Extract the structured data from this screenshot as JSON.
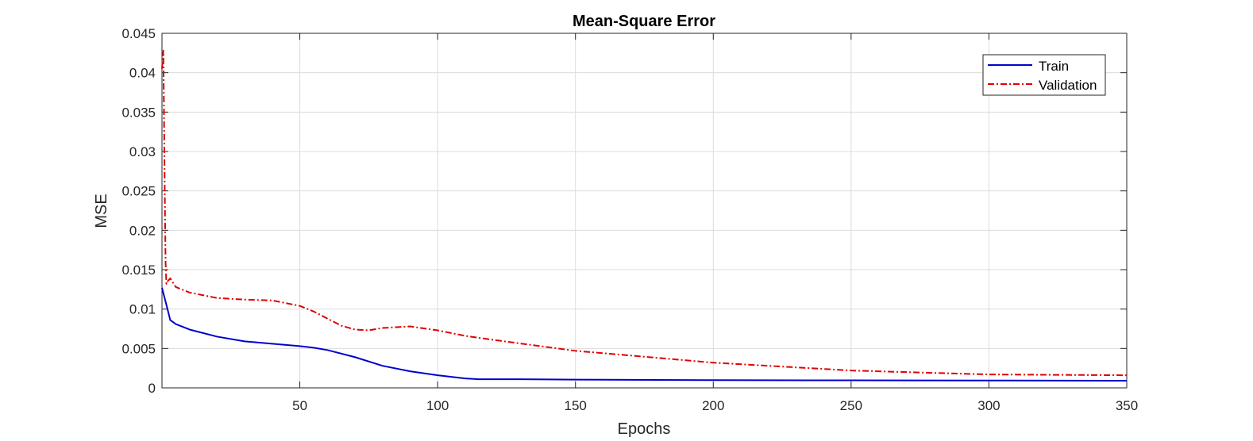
{
  "chart_data": {
    "type": "line",
    "title": "Mean-Square Error",
    "xlabel": "Epochs",
    "ylabel": "MSE",
    "xlim": [
      0,
      350
    ],
    "ylim": [
      0,
      0.045
    ],
    "grid": true,
    "legend_position": "top-right",
    "x_ticks": [
      50,
      100,
      150,
      200,
      250,
      300,
      350
    ],
    "y_ticks": [
      0,
      0.005,
      0.01,
      0.015,
      0.02,
      0.025,
      0.03,
      0.035,
      0.04,
      0.045
    ],
    "x_tick_labels": [
      "50",
      "100",
      "150",
      "200",
      "250",
      "300",
      "350"
    ],
    "y_tick_labels": [
      "0",
      "0.005",
      "0.01",
      "0.015",
      "0.02",
      "0.025",
      "0.03",
      "0.035",
      "0.04",
      "0.045"
    ],
    "series": [
      {
        "name": "Train",
        "color": "#0000d0",
        "style": "solid",
        "x": [
          0,
          2,
          3,
          5,
          10,
          20,
          30,
          40,
          50,
          55,
          60,
          70,
          80,
          90,
          100,
          110,
          115,
          120,
          130,
          150,
          200,
          250,
          300,
          350
        ],
        "y": [
          0.0127,
          0.01,
          0.0086,
          0.0081,
          0.0074,
          0.0065,
          0.0059,
          0.0056,
          0.0053,
          0.0051,
          0.0048,
          0.0039,
          0.0028,
          0.0021,
          0.0016,
          0.0012,
          0.0011,
          0.0011,
          0.0011,
          0.00105,
          0.00098,
          0.00095,
          0.00093,
          0.0009
        ]
      },
      {
        "name": "Validation",
        "color": "#e00000",
        "style": "dashdot",
        "x": [
          0,
          0.5,
          1,
          1.3,
          1.6,
          2,
          3,
          5,
          10,
          20,
          30,
          40,
          50,
          55,
          60,
          65,
          70,
          75,
          80,
          90,
          100,
          110,
          120,
          150,
          200,
          250,
          300,
          350
        ],
        "y": [
          0.0405,
          0.0428,
          0.025,
          0.016,
          0.0132,
          0.0135,
          0.0139,
          0.0128,
          0.0121,
          0.0114,
          0.0112,
          0.0111,
          0.0104,
          0.0097,
          0.0088,
          0.0079,
          0.0074,
          0.0073,
          0.0076,
          0.0078,
          0.0073,
          0.0066,
          0.0061,
          0.0047,
          0.0032,
          0.0022,
          0.0017,
          0.0016
        ]
      }
    ]
  }
}
